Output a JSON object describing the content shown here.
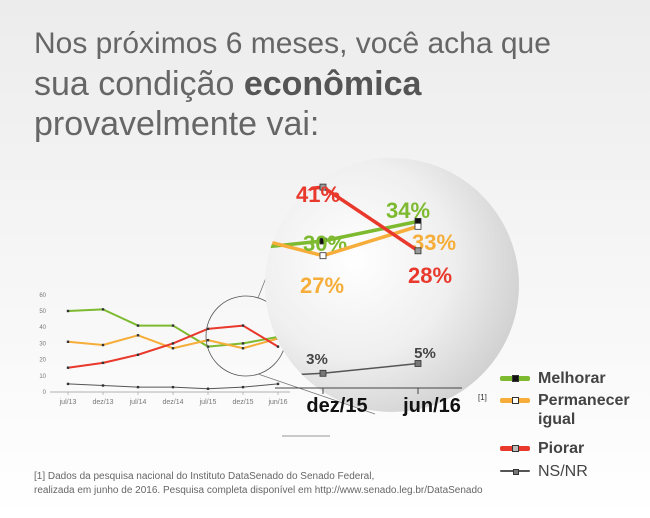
{
  "title": {
    "line1": "Nos próximos 6 meses, você acha que",
    "line2_pre": "sua condição ",
    "line2_bold": "econômica",
    "line3": "provavelmente vai:"
  },
  "chart_data": {
    "type": "line",
    "x": [
      "jul/13",
      "dez/13",
      "jul/14",
      "dez/14",
      "jul/15",
      "dez/15",
      "jun/16"
    ],
    "ylim": [
      0,
      60
    ],
    "yticks": [
      0,
      10,
      20,
      30,
      40,
      50,
      60
    ],
    "series": [
      {
        "name": "Melhorar",
        "color": "#7dba2f",
        "values": [
          50,
          51,
          41,
          41,
          28,
          30,
          34
        ]
      },
      {
        "name": "Permanecer igual",
        "color": "#f6ad39",
        "values": [
          31,
          29,
          35,
          27,
          32,
          27,
          33
        ]
      },
      {
        "name": "Piorar",
        "color": "#e8392c",
        "values": [
          15,
          18,
          23,
          30,
          39,
          41,
          28
        ]
      },
      {
        "name": "NS/NR",
        "color": "#555555",
        "values": [
          5,
          4,
          3,
          3,
          2,
          3,
          5
        ]
      }
    ],
    "zoom": {
      "x": [
        "dez/15",
        "jun/16"
      ],
      "labels": {
        "Melhorar": [
          "30%",
          "34%"
        ],
        "Permanecer igual": [
          "27%",
          "33%"
        ],
        "Piorar": [
          "41%",
          "28%"
        ],
        "NS/NR": [
          "3%",
          "5%"
        ]
      },
      "footnote_ref": "[1]"
    }
  },
  "legend": [
    {
      "label": "Melhorar",
      "color": "#7dba2f",
      "bold": true
    },
    {
      "label": "Permanecer igual",
      "color": "#f6ad39",
      "bold": true
    },
    {
      "label": "Piorar",
      "color": "#e8392c",
      "bold": true
    },
    {
      "label": "NS/NR",
      "color": "#555555",
      "bold": false
    }
  ],
  "footnote": {
    "line1": "[1] Dados da pesquisa nacional do Instituto DataSenado do Senado Federal,",
    "line2": "realizada em junho de 2016. Pesquisa completa disponível em http://www.senado.leg.br/DataSenado"
  }
}
